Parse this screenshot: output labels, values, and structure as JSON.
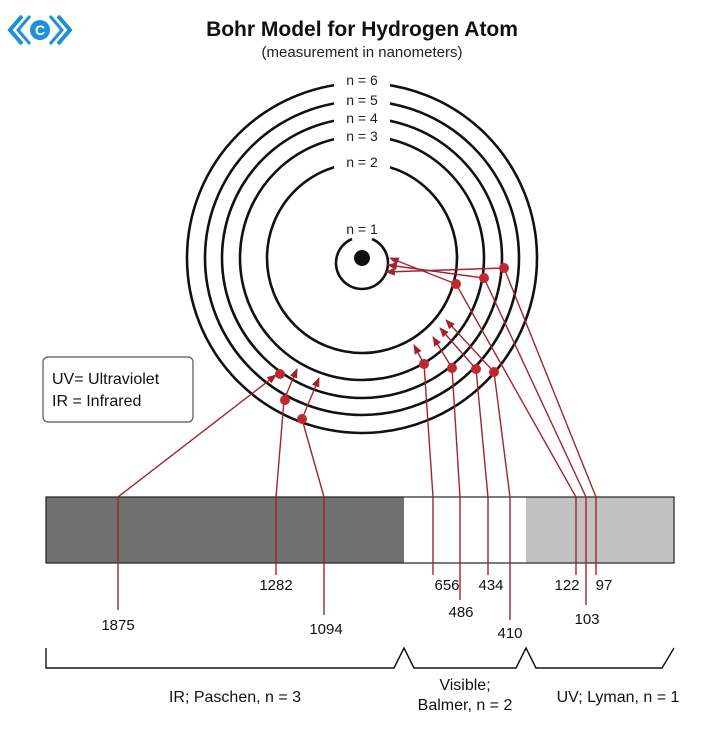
{
  "header": {
    "title": "Bohr Model for Hydrogen Atom",
    "subtitle": "(measurement in nanometers)"
  },
  "logo": {
    "icon": "chevron-c-logo-icon",
    "letter": "C",
    "color": "#1e90d6"
  },
  "orbits": {
    "n1": "n = 1",
    "n2": "n = 2",
    "n3": "n = 3",
    "n4": "n = 4",
    "n5": "n = 5",
    "n6": "n = 6"
  },
  "legend": {
    "uv": "UV= Ultraviolet",
    "ir": "IR = Infrared"
  },
  "spectrum": {
    "ir_color": "#707070",
    "visible_color": "#ffffff",
    "uv_color": "#c2c2c2"
  },
  "wavelengths": {
    "w1875": "1875",
    "w1282": "1282",
    "w1094": "1094",
    "w656": "656",
    "w486": "486",
    "w434": "434",
    "w410": "410",
    "w122": "122",
    "w103": "103",
    "w97": "97"
  },
  "series": {
    "paschen": "IR; Paschen, n = 3",
    "balmer_1": "Visible;",
    "balmer_2": "Balmer, n = 2",
    "lyman": "UV; Lyman, n = 1"
  },
  "colors": {
    "transition": "#a02430",
    "dot": "#c0282f"
  }
}
